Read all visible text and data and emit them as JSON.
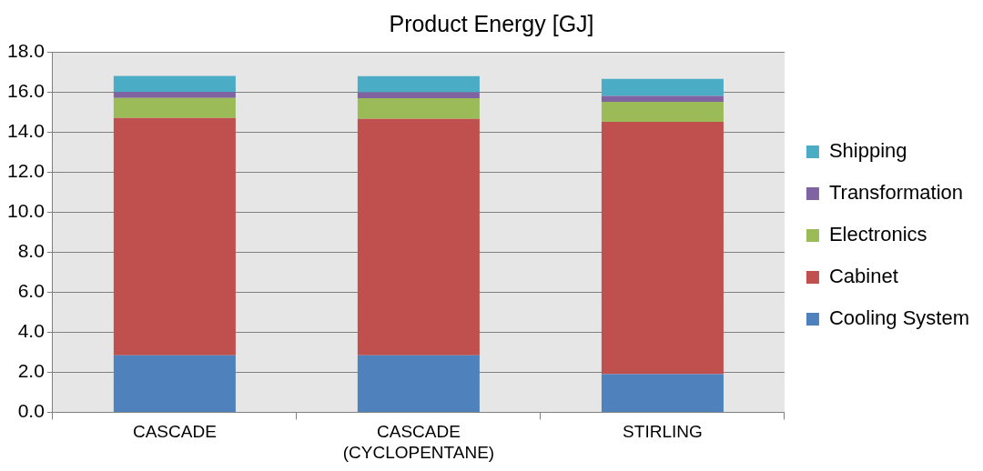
{
  "chart_data": {
    "type": "bar",
    "title": "Product Energy [GJ]",
    "stacked": true,
    "legend": "right",
    "grid": "y",
    "categories": [
      "CASCADE",
      "CASCADE (CYCLOPENTANE)",
      "STIRLING"
    ],
    "series": [
      {
        "name": "Cooling System",
        "color": "#4f81bd",
        "values": [
          2.85,
          2.85,
          1.9
        ]
      },
      {
        "name": "Cabinet",
        "color": "#c0504d",
        "values": [
          11.85,
          11.8,
          12.6
        ]
      },
      {
        "name": "Electronics",
        "color": "#9bbb59",
        "values": [
          1.0,
          1.03,
          1.0
        ]
      },
      {
        "name": "Transformation",
        "color": "#8064a2",
        "values": [
          0.3,
          0.3,
          0.3
        ]
      },
      {
        "name": "Shipping",
        "color": "#4bacc6",
        "values": [
          0.8,
          0.8,
          0.85
        ]
      }
    ],
    "ylim": [
      0,
      18
    ],
    "yticks": [
      {
        "value": 0,
        "label": "0.0"
      },
      {
        "value": 2,
        "label": "2.0"
      },
      {
        "value": 4,
        "label": "4.0"
      },
      {
        "value": 6,
        "label": "6.0"
      },
      {
        "value": 8,
        "label": "8.0"
      },
      {
        "value": 10,
        "label": "10.0"
      },
      {
        "value": 12,
        "label": "12.0"
      },
      {
        "value": 14,
        "label": "14.0"
      },
      {
        "value": 16,
        "label": "16.0"
      },
      {
        "value": 18,
        "label": "18.0"
      }
    ]
  }
}
